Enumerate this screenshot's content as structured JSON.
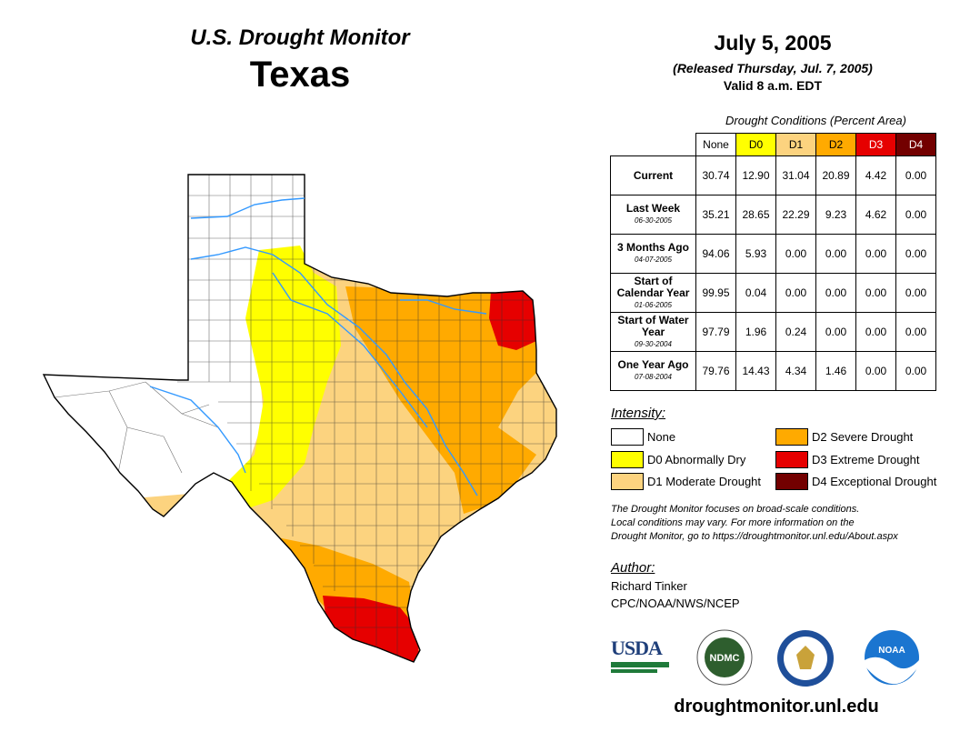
{
  "header": {
    "subtitle": "U.S. Drought Monitor",
    "state": "Texas",
    "date": "July 5, 2005",
    "released": "(Released Thursday, Jul. 7, 2005)",
    "valid": "Valid 8 a.m. EDT"
  },
  "table": {
    "caption": "Drought Conditions (Percent Area)",
    "columns": [
      "None",
      "D0",
      "D1",
      "D2",
      "D3",
      "D4"
    ],
    "column_colors": [
      "#ffffff",
      "#ffff00",
      "#fcd37f",
      "#ffaa00",
      "#e60000",
      "#730000"
    ],
    "rows": [
      {
        "label": "Current",
        "date": "",
        "values": [
          "30.74",
          "12.90",
          "31.04",
          "20.89",
          "4.42",
          "0.00"
        ]
      },
      {
        "label": "Last Week",
        "date": "06-30-2005",
        "values": [
          "35.21",
          "28.65",
          "22.29",
          "9.23",
          "4.62",
          "0.00"
        ]
      },
      {
        "label": "3 Months Ago",
        "date": "04-07-2005",
        "values": [
          "94.06",
          "5.93",
          "0.00",
          "0.00",
          "0.00",
          "0.00"
        ]
      },
      {
        "label": "Start of Calendar Year",
        "date": "01-06-2005",
        "values": [
          "99.95",
          "0.04",
          "0.00",
          "0.00",
          "0.00",
          "0.00"
        ]
      },
      {
        "label": "Start of Water Year",
        "date": "09-30-2004",
        "values": [
          "97.79",
          "1.96",
          "0.24",
          "0.00",
          "0.00",
          "0.00"
        ]
      },
      {
        "label": "One Year Ago",
        "date": "07-08-2004",
        "values": [
          "79.76",
          "14.43",
          "4.34",
          "1.46",
          "0.00",
          "0.00"
        ]
      }
    ]
  },
  "legend": {
    "title": "Intensity:",
    "items": [
      {
        "label": "None",
        "color": "#ffffff"
      },
      {
        "label": "D0 Abnormally Dry",
        "color": "#ffff00"
      },
      {
        "label": "D1 Moderate Drought",
        "color": "#fcd37f"
      },
      {
        "label": "D2 Severe Drought",
        "color": "#ffaa00"
      },
      {
        "label": "D3 Extreme Drought",
        "color": "#e60000"
      },
      {
        "label": "D4 Exceptional Drought",
        "color": "#730000"
      }
    ]
  },
  "note": {
    "line1": "The Drought Monitor focuses on broad-scale conditions.",
    "line2": "Local conditions may vary. For more information on the",
    "line3": "Drought Monitor, go to https://droughtmonitor.unl.edu/About.aspx"
  },
  "author": {
    "title": "Author:",
    "name": "Richard Tinker",
    "org": "CPC/NOAA/NWS/NCEP"
  },
  "logos": {
    "usda": "USDA",
    "ndmc": "NDMC",
    "noaa": "NOAA"
  },
  "website": "droughtmonitor.unl.edu"
}
